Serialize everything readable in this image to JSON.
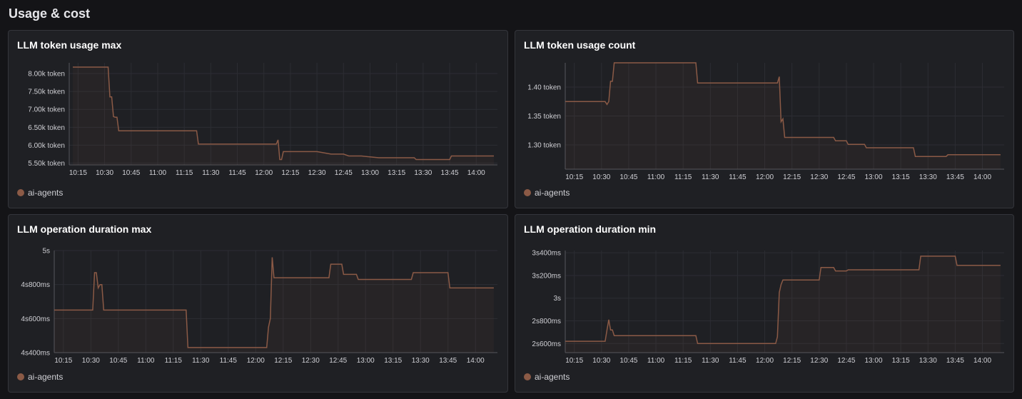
{
  "page": {
    "title": "Usage & cost",
    "colors": {
      "background": "#141417",
      "panel": "#1f2024",
      "series": "#8b5a46",
      "grid": "#2c2d33",
      "axis": "#55565c"
    }
  },
  "panels": [
    {
      "title": "LLM token usage max",
      "legend": "ai-agents",
      "chart_data": {
        "type": "line",
        "title": "LLM token usage max",
        "y_ticks": [
          {
            "v": 5500,
            "label": "5.50k token"
          },
          {
            "v": 6000,
            "label": "6.00k token"
          },
          {
            "v": 6500,
            "label": "6.50k token"
          },
          {
            "v": 7000,
            "label": "7.00k token"
          },
          {
            "v": 7500,
            "label": "7.50k token"
          },
          {
            "v": 8000,
            "label": "8.00k token"
          }
        ],
        "ylim": [
          5450,
          8300
        ],
        "xlim": [
          "10:10",
          "14:12"
        ],
        "x_ticks": [
          "10:15",
          "10:30",
          "10:45",
          "11:00",
          "11:15",
          "11:30",
          "11:45",
          "12:00",
          "12:15",
          "12:30",
          "12:45",
          "13:00",
          "13:15",
          "13:30",
          "13:45",
          "14:00"
        ],
        "series": [
          {
            "name": "ai-agents",
            "x": [
              "10:12",
              "10:32",
              "10:33",
              "10:34",
              "10:35",
              "10:36",
              "10:37",
              "10:38",
              "11:22",
              "11:23",
              "12:07",
              "12:08",
              "12:09",
              "12:10",
              "12:11",
              "12:30",
              "12:38",
              "12:45",
              "12:48",
              "12:55",
              "13:05",
              "13:25",
              "13:26",
              "13:45",
              "13:46",
              "14:10"
            ],
            "y": [
              8180,
              8180,
              7350,
              7350,
              6800,
              6780,
              6780,
              6400,
              6400,
              6030,
              6030,
              6150,
              5600,
              5600,
              5820,
              5820,
              5750,
              5750,
              5700,
              5700,
              5650,
              5650,
              5600,
              5600,
              5700,
              5700
            ]
          }
        ]
      }
    },
    {
      "title": "LLM token usage count",
      "legend": "ai-agents",
      "chart_data": {
        "type": "line",
        "title": "LLM token usage count",
        "y_ticks": [
          {
            "v": 1.3,
            "label": "1.30 token"
          },
          {
            "v": 1.35,
            "label": "1.35 token"
          },
          {
            "v": 1.4,
            "label": "1.40 token"
          }
        ],
        "ylim": [
          1.258,
          1.442
        ],
        "xlim": [
          "10:10",
          "14:12"
        ],
        "x_ticks": [
          "10:15",
          "10:30",
          "10:45",
          "11:00",
          "11:15",
          "11:30",
          "11:45",
          "12:00",
          "12:15",
          "12:30",
          "12:45",
          "13:00",
          "13:15",
          "13:30",
          "13:45",
          "14:00"
        ],
        "series": [
          {
            "name": "ai-agents",
            "x": [
              "10:10",
              "10:32",
              "10:33",
              "10:34",
              "10:35",
              "10:36",
              "10:37",
              "10:38",
              "11:22",
              "11:23",
              "12:07",
              "12:08",
              "12:09",
              "12:10",
              "12:11",
              "12:38",
              "12:39",
              "12:45",
              "12:46",
              "12:55",
              "12:56",
              "13:22",
              "13:23",
              "13:40",
              "13:41",
              "14:10"
            ],
            "y": [
              1.375,
              1.375,
              1.37,
              1.375,
              1.41,
              1.41,
              1.442,
              1.442,
              1.442,
              1.407,
              1.407,
              1.418,
              1.34,
              1.345,
              1.313,
              1.313,
              1.307,
              1.307,
              1.301,
              1.301,
              1.295,
              1.295,
              1.28,
              1.28,
              1.283,
              1.283
            ]
          }
        ]
      }
    },
    {
      "title": "LLM operation duration max",
      "legend": "ai-agents",
      "chart_data": {
        "type": "line",
        "title": "LLM operation duration max",
        "y_ticks": [
          {
            "v": 4.4,
            "label": "4s400ms"
          },
          {
            "v": 4.6,
            "label": "4s600ms"
          },
          {
            "v": 4.8,
            "label": "4s800ms"
          },
          {
            "v": 5.0,
            "label": "5s"
          }
        ],
        "ylim": [
          4.4,
          5.0
        ],
        "xlim": [
          "10:10",
          "14:12"
        ],
        "x_ticks": [
          "10:15",
          "10:30",
          "10:45",
          "11:00",
          "11:15",
          "11:30",
          "11:45",
          "12:00",
          "12:15",
          "12:30",
          "12:45",
          "13:00",
          "13:15",
          "13:30",
          "13:45",
          "14:00"
        ],
        "series": [
          {
            "name": "ai-agents",
            "x": [
              "10:10",
              "10:31",
              "10:32",
              "10:33",
              "10:34",
              "10:35",
              "10:36",
              "10:37",
              "11:22",
              "11:23",
              "12:06",
              "12:07",
              "12:08",
              "12:09",
              "12:10",
              "12:40",
              "12:41",
              "12:47",
              "12:48",
              "12:55",
              "12:56",
              "13:25",
              "13:26",
              "13:45",
              "13:46",
              "14:10"
            ],
            "y": [
              4.65,
              4.65,
              4.87,
              4.87,
              4.78,
              4.8,
              4.8,
              4.65,
              4.65,
              4.43,
              4.43,
              4.55,
              4.6,
              4.96,
              4.84,
              4.84,
              4.92,
              4.92,
              4.86,
              4.86,
              4.83,
              4.83,
              4.87,
              4.87,
              4.78,
              4.78
            ]
          }
        ]
      }
    },
    {
      "title": "LLM operation duration min",
      "legend": "ai-agents",
      "chart_data": {
        "type": "line",
        "title": "LLM operation duration min",
        "y_ticks": [
          {
            "v": 2.6,
            "label": "2s600ms"
          },
          {
            "v": 2.8,
            "label": "2s800ms"
          },
          {
            "v": 3.0,
            "label": "3s"
          },
          {
            "v": 3.2,
            "label": "3s200ms"
          },
          {
            "v": 3.4,
            "label": "3s400ms"
          }
        ],
        "ylim": [
          2.52,
          3.42
        ],
        "xlim": [
          "10:10",
          "14:12"
        ],
        "x_ticks": [
          "10:15",
          "10:30",
          "10:45",
          "11:00",
          "11:15",
          "11:30",
          "11:45",
          "12:00",
          "12:15",
          "12:30",
          "12:45",
          "13:00",
          "13:15",
          "13:30",
          "13:45",
          "14:00"
        ],
        "series": [
          {
            "name": "ai-agents",
            "x": [
              "10:10",
              "10:32",
              "10:33",
              "10:34",
              "10:35",
              "10:36",
              "10:37",
              "10:38",
              "11:22",
              "11:23",
              "12:06",
              "12:07",
              "12:08",
              "12:09",
              "12:10",
              "12:30",
              "12:31",
              "12:38",
              "12:39",
              "12:45",
              "12:46",
              "13:25",
              "13:26",
              "13:45",
              "13:46",
              "14:10"
            ],
            "y": [
              2.62,
              2.62,
              2.72,
              2.81,
              2.72,
              2.72,
              2.67,
              2.67,
              2.67,
              2.6,
              2.6,
              2.66,
              3.05,
              3.12,
              3.16,
              3.16,
              3.27,
              3.27,
              3.24,
              3.24,
              3.25,
              3.25,
              3.37,
              3.37,
              3.29,
              3.29
            ]
          }
        ]
      }
    }
  ]
}
